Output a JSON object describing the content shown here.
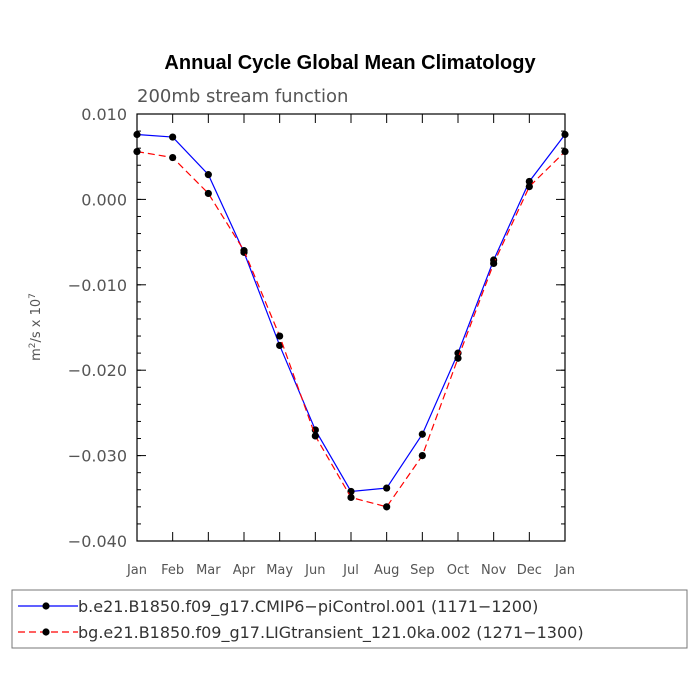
{
  "chart_data": {
    "type": "line",
    "title": "Annual Cycle Global Mean Climatology",
    "subtitle": "200mb stream function",
    "ylabel": "m²/s x 10⁷",
    "ylabel_base": "m",
    "ylabel_exp1": "2",
    "ylabel_mid": "/s x 10",
    "ylabel_exp2": "7",
    "xlabel": "",
    "categories": [
      "Jan",
      "Feb",
      "Mar",
      "Apr",
      "May",
      "Jun",
      "Jul",
      "Aug",
      "Sep",
      "Oct",
      "Nov",
      "Dec",
      "Jan"
    ],
    "ylim": [
      -0.04,
      0.01
    ],
    "yticks": [
      "0.010",
      "0.000",
      "−0.010",
      "−0.020",
      "−0.030",
      "−0.040"
    ],
    "ytick_values": [
      0.01,
      0.0,
      -0.01,
      -0.02,
      -0.03,
      -0.04
    ],
    "grid": false,
    "legend_position": "bottom",
    "series": [
      {
        "name": "b.e21.B1850.f09_g17.CMIP6−piControl.001 (1171−1200)",
        "color": "#0000ff",
        "dash": "solid",
        "values": [
          0.0076,
          0.0073,
          0.0029,
          -0.0062,
          -0.0171,
          -0.027,
          -0.0342,
          -0.0338,
          -0.0275,
          -0.018,
          -0.0071,
          0.0021,
          0.0076
        ]
      },
      {
        "name": "bg.e21.B1850.f09_g17.LIGtransient_121.0ka.002 (1271−1300)",
        "color": "#ff0000",
        "dash": "dashed",
        "values": [
          0.0056,
          0.0049,
          0.0007,
          -0.006,
          -0.016,
          -0.0277,
          -0.0349,
          -0.036,
          -0.03,
          -0.0186,
          -0.0075,
          0.0015,
          0.0056
        ]
      }
    ]
  }
}
